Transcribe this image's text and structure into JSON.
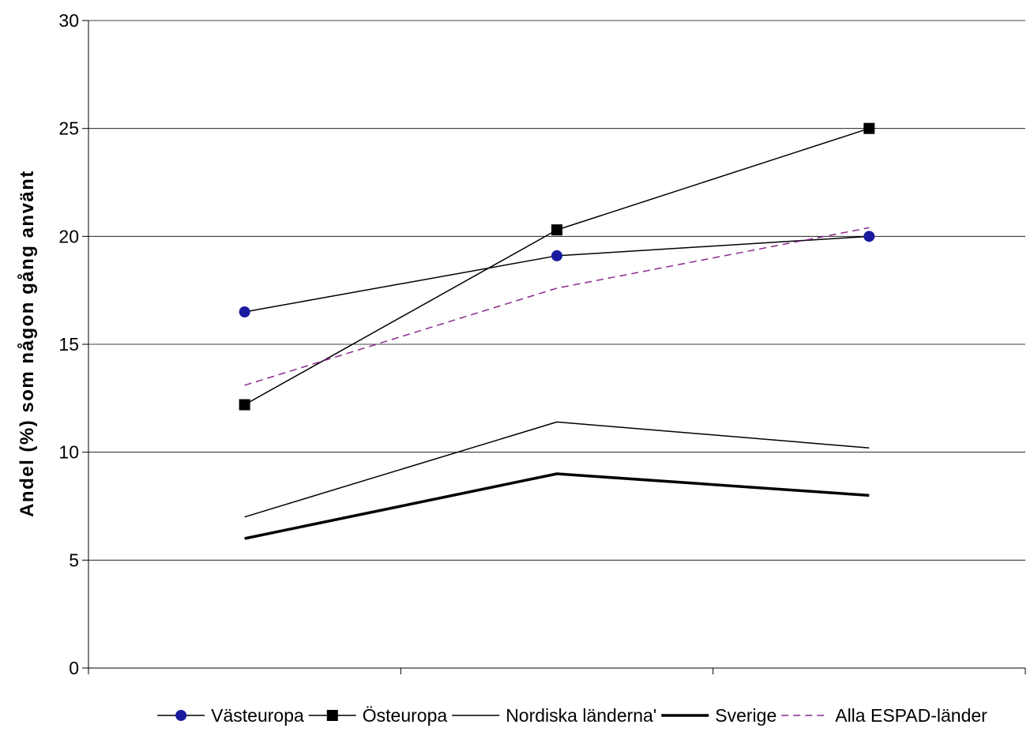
{
  "chart_data": {
    "type": "line",
    "title": "",
    "xlabel": "",
    "ylabel": "Andel (%) som någon gång använt",
    "ylim": [
      0,
      30
    ],
    "yticks": [
      0,
      5,
      10,
      15,
      20,
      25,
      30
    ],
    "categories": [
      "",
      "",
      ""
    ],
    "grid": true,
    "legend_position": "bottom",
    "series": [
      {
        "name": "Västeuropa",
        "values": [
          16.5,
          19.1,
          20.0
        ],
        "color": "#000000",
        "marker": "circle",
        "marker_color": "#1a1a9e",
        "line_width": 1.5,
        "dashed": false
      },
      {
        "name": "Östeuropa",
        "values": [
          12.2,
          20.3,
          25.0
        ],
        "color": "#000000",
        "marker": "square",
        "marker_color": "#000000",
        "line_width": 1.5,
        "dashed": false
      },
      {
        "name": "Nordiska länderna'",
        "values": [
          7.0,
          11.4,
          10.2
        ],
        "color": "#000000",
        "marker": "none",
        "line_width": 1.5,
        "dashed": false
      },
      {
        "name": "Sverige",
        "values": [
          6.0,
          9.0,
          8.0
        ],
        "color": "#000000",
        "marker": "none",
        "line_width": 3.5,
        "dashed": false
      },
      {
        "name": "Alla ESPAD-länder",
        "values": [
          13.1,
          17.6,
          20.4
        ],
        "color": "#8b2a8b",
        "marker": "none",
        "line_width": 1.5,
        "dashed": true
      }
    ]
  }
}
